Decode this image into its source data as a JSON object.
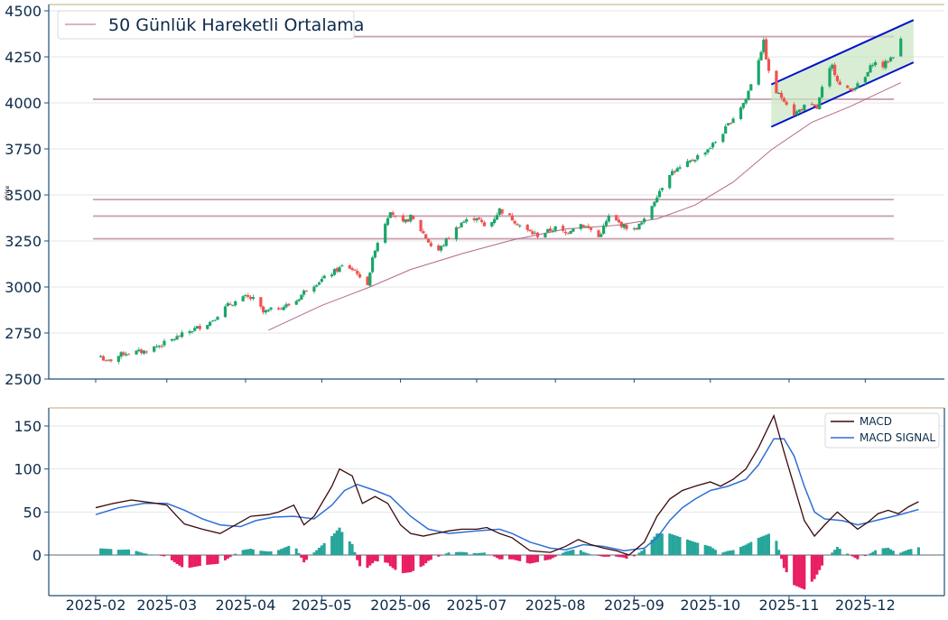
{
  "colors": {
    "axis": "#1f4e79",
    "tick_text": "#0d2b4a",
    "grid": "#e6e6e6",
    "top_border": "#d2c9a5",
    "up": "#26a69a",
    "up_candle": "#1aa56a",
    "down": "#ef5350",
    "ma": "#b46a8a",
    "hline": "#c9a3b0",
    "channel": "#0011cc",
    "channel_fill": "#c8e6c0",
    "macd": "#3a0a0a",
    "signal": "#2f6fd6",
    "hist_pos": "#26a69a",
    "hist_neg": "#e91e63"
  },
  "chart_data": [
    {
      "id": "price",
      "type": "candlestick",
      "ylabel": "Price",
      "ylim": [
        2500,
        4500
      ],
      "yticks": [
        "2500",
        "2750",
        "3000",
        "3250",
        "3500",
        "3750",
        "4000",
        "4250",
        "4500"
      ],
      "legend": {
        "placement": "top-left",
        "entries": [
          "50 Günlük Hareketli Ortalama"
        ]
      },
      "horizontal_lines": [
        4360,
        4020,
        3475,
        3385,
        3262
      ],
      "anchors": [
        [
          "2025-02-01",
          2660
        ],
        [
          "2025-02-05",
          2590
        ],
        [
          "2025-02-12",
          2640
        ],
        [
          "2025-02-20",
          2650
        ],
        [
          "2025-03-01",
          2700
        ],
        [
          "2025-03-10",
          2760
        ],
        [
          "2025-03-18",
          2810
        ],
        [
          "2025-03-25",
          2900
        ],
        [
          "2025-04-01",
          2945
        ],
        [
          "2025-04-05",
          2930
        ],
        [
          "2025-04-08",
          2860
        ],
        [
          "2025-04-12",
          2880
        ],
        [
          "2025-04-20",
          2910
        ],
        [
          "2025-04-25",
          2990
        ],
        [
          "2025-05-01",
          3040
        ],
        [
          "2025-05-10",
          3120
        ],
        [
          "2025-05-15",
          3080
        ],
        [
          "2025-05-18",
          2960
        ],
        [
          "2025-05-22",
          3210
        ],
        [
          "2025-05-28",
          3420
        ],
        [
          "2025-06-01",
          3330
        ],
        [
          "2025-06-05",
          3380
        ],
        [
          "2025-06-10",
          3290
        ],
        [
          "2025-06-15",
          3180
        ],
        [
          "2025-06-20",
          3270
        ],
        [
          "2025-06-25",
          3350
        ],
        [
          "2025-07-01",
          3380
        ],
        [
          "2025-07-05",
          3310
        ],
        [
          "2025-07-10",
          3420
        ],
        [
          "2025-07-15",
          3370
        ],
        [
          "2025-07-20",
          3310
        ],
        [
          "2025-07-25",
          3280
        ],
        [
          "2025-08-01",
          3320
        ],
        [
          "2025-08-05",
          3290
        ],
        [
          "2025-08-10",
          3350
        ],
        [
          "2025-08-15",
          3310
        ],
        [
          "2025-08-18",
          3270
        ],
        [
          "2025-08-22",
          3380
        ],
        [
          "2025-08-28",
          3330
        ],
        [
          "2025-09-01",
          3310
        ],
        [
          "2025-09-05",
          3360
        ],
        [
          "2025-09-10",
          3500
        ],
        [
          "2025-09-15",
          3620
        ],
        [
          "2025-09-20",
          3650
        ],
        [
          "2025-09-25",
          3700
        ],
        [
          "2025-10-01",
          3760
        ],
        [
          "2025-10-05",
          3820
        ],
        [
          "2025-10-10",
          3920
        ],
        [
          "2025-10-15",
          4020
        ],
        [
          "2025-10-20",
          4240
        ],
        [
          "2025-10-22",
          4330
        ],
        [
          "2025-10-25",
          4080
        ],
        [
          "2025-10-30",
          4020
        ],
        [
          "2025-11-03",
          3940
        ],
        [
          "2025-11-08",
          3990
        ],
        [
          "2025-11-12",
          3970
        ],
        [
          "2025-11-15",
          4130
        ],
        [
          "2025-11-18",
          4200
        ],
        [
          "2025-11-22",
          4060
        ],
        [
          "2025-11-26",
          4080
        ],
        [
          "2025-11-30",
          4110
        ],
        [
          "2025-12-04",
          4220
        ],
        [
          "2025-12-08",
          4200
        ],
        [
          "2025-12-12",
          4260
        ],
        [
          "2025-12-15",
          4340
        ]
      ],
      "ma_anchors": [
        [
          "2025-04-10",
          2765
        ],
        [
          "2025-05-01",
          2900
        ],
        [
          "2025-05-20",
          3000
        ],
        [
          "2025-06-05",
          3095
        ],
        [
          "2025-06-25",
          3180
        ],
        [
          "2025-07-15",
          3255
        ],
        [
          "2025-08-05",
          3315
        ],
        [
          "2025-08-25",
          3335
        ],
        [
          "2025-09-10",
          3370
        ],
        [
          "2025-09-25",
          3445
        ],
        [
          "2025-10-10",
          3570
        ],
        [
          "2025-10-25",
          3745
        ],
        [
          "2025-11-10",
          3895
        ],
        [
          "2025-11-25",
          3980
        ],
        [
          "2025-12-15",
          4110
        ]
      ],
      "channel": {
        "x": [
          "2025-10-25",
          "2025-12-20"
        ],
        "upper": [
          4100,
          4450
        ],
        "lower": [
          3870,
          4220
        ]
      }
    },
    {
      "id": "macd",
      "type": "line",
      "ylim": [
        -50,
        170
      ],
      "yticks": [
        "0",
        "50",
        "100",
        "150"
      ],
      "legend": {
        "placement": "top-right",
        "entries": [
          "MACD",
          "MACD SIGNAL"
        ]
      },
      "series": [
        {
          "name": "MACD",
          "points": [
            [
              "2025-02-01",
              55
            ],
            [
              "2025-02-08",
              60
            ],
            [
              "2025-02-15",
              64
            ],
            [
              "2025-02-25",
              60
            ],
            [
              "2025-03-01",
              58
            ],
            [
              "2025-03-05",
              45
            ],
            [
              "2025-03-08",
              36
            ],
            [
              "2025-03-15",
              30
            ],
            [
              "2025-03-22",
              25
            ],
            [
              "2025-03-28",
              35
            ],
            [
              "2025-04-03",
              45
            ],
            [
              "2025-04-10",
              47
            ],
            [
              "2025-04-14",
              50
            ],
            [
              "2025-04-20",
              58
            ],
            [
              "2025-04-24",
              35
            ],
            [
              "2025-04-28",
              45
            ],
            [
              "2025-05-05",
              80
            ],
            [
              "2025-05-08",
              100
            ],
            [
              "2025-05-13",
              92
            ],
            [
              "2025-05-17",
              60
            ],
            [
              "2025-05-22",
              68
            ],
            [
              "2025-05-27",
              60
            ],
            [
              "2025-06-01",
              35
            ],
            [
              "2025-06-05",
              25
            ],
            [
              "2025-06-10",
              22
            ],
            [
              "2025-06-15",
              25
            ],
            [
              "2025-06-20",
              28
            ],
            [
              "2025-06-25",
              30
            ],
            [
              "2025-07-01",
              30
            ],
            [
              "2025-07-05",
              32
            ],
            [
              "2025-07-10",
              25
            ],
            [
              "2025-07-15",
              20
            ],
            [
              "2025-07-22",
              5
            ],
            [
              "2025-07-30",
              3
            ],
            [
              "2025-08-05",
              10
            ],
            [
              "2025-08-10",
              18
            ],
            [
              "2025-08-15",
              12
            ],
            [
              "2025-08-20",
              8
            ],
            [
              "2025-08-25",
              5
            ],
            [
              "2025-08-30",
              0
            ],
            [
              "2025-09-05",
              15
            ],
            [
              "2025-09-10",
              45
            ],
            [
              "2025-09-15",
              65
            ],
            [
              "2025-09-20",
              75
            ],
            [
              "2025-09-25",
              80
            ],
            [
              "2025-10-01",
              85
            ],
            [
              "2025-10-05",
              80
            ],
            [
              "2025-10-10",
              88
            ],
            [
              "2025-10-15",
              100
            ],
            [
              "2025-10-20",
              125
            ],
            [
              "2025-10-26",
              162
            ],
            [
              "2025-10-30",
              120
            ],
            [
              "2025-11-03",
              80
            ],
            [
              "2025-11-07",
              40
            ],
            [
              "2025-11-11",
              22
            ],
            [
              "2025-11-15",
              35
            ],
            [
              "2025-11-20",
              50
            ],
            [
              "2025-11-24",
              40
            ],
            [
              "2025-11-28",
              30
            ],
            [
              "2025-12-02",
              38
            ],
            [
              "2025-12-06",
              48
            ],
            [
              "2025-12-10",
              52
            ],
            [
              "2025-12-14",
              48
            ],
            [
              "2025-12-18",
              56
            ],
            [
              "2025-12-22",
              62
            ]
          ]
        },
        {
          "name": "MACD SIGNAL",
          "points": [
            [
              "2025-02-01",
              47
            ],
            [
              "2025-02-10",
              55
            ],
            [
              "2025-02-20",
              60
            ],
            [
              "2025-03-01",
              60
            ],
            [
              "2025-03-08",
              52
            ],
            [
              "2025-03-15",
              42
            ],
            [
              "2025-03-22",
              35
            ],
            [
              "2025-03-30",
              33
            ],
            [
              "2025-04-05",
              40
            ],
            [
              "2025-04-12",
              44
            ],
            [
              "2025-04-20",
              45
            ],
            [
              "2025-04-28",
              42
            ],
            [
              "2025-05-05",
              58
            ],
            [
              "2025-05-10",
              75
            ],
            [
              "2025-05-15",
              82
            ],
            [
              "2025-05-22",
              75
            ],
            [
              "2025-05-28",
              68
            ],
            [
              "2025-06-05",
              45
            ],
            [
              "2025-06-12",
              30
            ],
            [
              "2025-06-20",
              25
            ],
            [
              "2025-07-01",
              28
            ],
            [
              "2025-07-10",
              30
            ],
            [
              "2025-07-15",
              25
            ],
            [
              "2025-07-22",
              15
            ],
            [
              "2025-07-30",
              8
            ],
            [
              "2025-08-05",
              6
            ],
            [
              "2025-08-12",
              12
            ],
            [
              "2025-08-20",
              10
            ],
            [
              "2025-08-28",
              5
            ],
            [
              "2025-09-05",
              8
            ],
            [
              "2025-09-10",
              20
            ],
            [
              "2025-09-15",
              40
            ],
            [
              "2025-09-20",
              55
            ],
            [
              "2025-09-25",
              65
            ],
            [
              "2025-10-01",
              75
            ],
            [
              "2025-10-08",
              80
            ],
            [
              "2025-10-15",
              88
            ],
            [
              "2025-10-20",
              105
            ],
            [
              "2025-10-26",
              135
            ],
            [
              "2025-10-30",
              135
            ],
            [
              "2025-11-03",
              115
            ],
            [
              "2025-11-07",
              80
            ],
            [
              "2025-11-11",
              50
            ],
            [
              "2025-11-15",
              42
            ],
            [
              "2025-11-22",
              40
            ],
            [
              "2025-11-28",
              35
            ],
            [
              "2025-12-05",
              40
            ],
            [
              "2025-12-12",
              45
            ],
            [
              "2025-12-16",
              48
            ],
            [
              "2025-12-22",
              53
            ]
          ]
        }
      ]
    }
  ],
  "x_axis": {
    "labels": [
      "2025-02",
      "2025-03",
      "2025-04",
      "2025-05",
      "2025-06",
      "2025-07",
      "2025-08",
      "2025-09",
      "2025-10",
      "2025-11",
      "2025-12"
    ]
  }
}
